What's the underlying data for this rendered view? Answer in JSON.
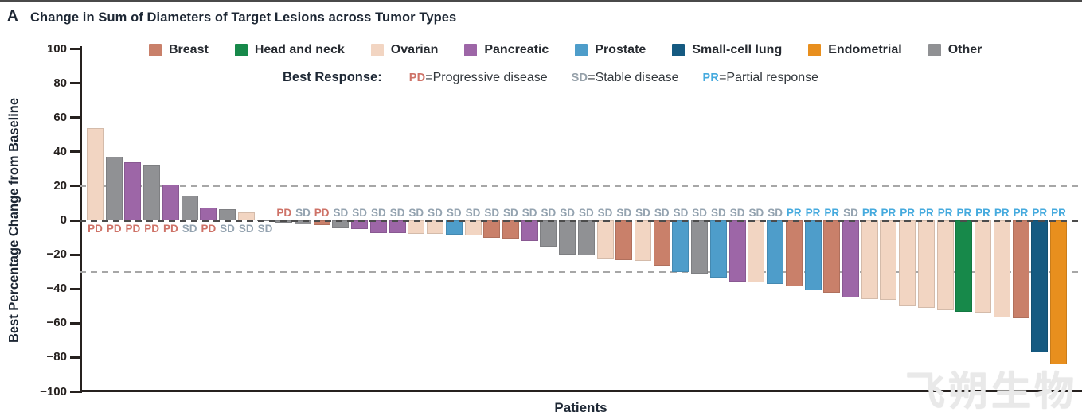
{
  "panel_label": "A",
  "title": "Change in Sum of Diameters of Target Lesions across Tumor Types",
  "ylabel": "Best Percentage Change from Baseline",
  "xlabel": "Patients",
  "watermark": "飞朔生物",
  "colors": {
    "Breast": "#c9806a",
    "Head and neck": "#17894a",
    "Ovarian": "#f2d5c2",
    "Pancreatic": "#9d66a7",
    "Prostate": "#4e9dca",
    "Small-cell lung": "#155a81",
    "Endometrial": "#e88f1e",
    "Other": "#909194",
    "PD": "#ce7267",
    "SD": "#94a3b0",
    "PR": "#45aade"
  },
  "legend": {
    "tumor_types": [
      {
        "label": "Breast",
        "color": "#c9806a"
      },
      {
        "label": "Head and neck",
        "color": "#17894a"
      },
      {
        "label": "Ovarian",
        "color": "#f2d5c2"
      },
      {
        "label": "Pancreatic",
        "color": "#9d66a7"
      },
      {
        "label": "Prostate",
        "color": "#4e9dca"
      },
      {
        "label": "Small-cell lung",
        "color": "#155a81"
      },
      {
        "label": "Endometrial",
        "color": "#e88f1e"
      },
      {
        "label": "Other",
        "color": "#909194"
      }
    ],
    "best_response_label": "Best Response:",
    "responses": [
      {
        "abbr": "PD",
        "label": "Progressive disease",
        "color": "#ce7267"
      },
      {
        "abbr": "SD",
        "label": "Stable disease",
        "color": "#95a0a9"
      },
      {
        "abbr": "PR",
        "label": "Partial response",
        "color": "#45aade"
      }
    ]
  },
  "chart_data": {
    "type": "bar",
    "title": "Change in Sum of Diameters of Target Lesions across Tumor Types",
    "xlabel": "Patients",
    "ylabel": "Best Percentage Change from Baseline",
    "ylim": [
      -100,
      100
    ],
    "yticks": [
      100,
      80,
      60,
      40,
      20,
      0,
      -20,
      -40,
      -60,
      -80,
      -100
    ],
    "reference_lines": [
      20,
      0,
      -30
    ],
    "grid": "dashed horizontal at +20, 0, -30",
    "legend_position": "top",
    "patients": [
      {
        "tumor": "Ovarian",
        "value": 54,
        "response": "PD"
      },
      {
        "tumor": "Other",
        "value": 37,
        "response": "PD"
      },
      {
        "tumor": "Pancreatic",
        "value": 34,
        "response": "PD"
      },
      {
        "tumor": "Other",
        "value": 32,
        "response": "PD"
      },
      {
        "tumor": "Pancreatic",
        "value": 21,
        "response": "PD"
      },
      {
        "tumor": "Other",
        "value": 14.5,
        "response": "SD"
      },
      {
        "tumor": "Pancreatic",
        "value": 7.5,
        "response": "PD"
      },
      {
        "tumor": "Other",
        "value": 6.5,
        "response": "SD"
      },
      {
        "tumor": "Ovarian",
        "value": 4.5,
        "response": "SD"
      },
      {
        "tumor": "Other",
        "value": 0.5,
        "response": "SD"
      },
      {
        "tumor": "Other",
        "value": -1.5,
        "response": "PD"
      },
      {
        "tumor": "Other",
        "value": -2.5,
        "response": "SD"
      },
      {
        "tumor": "Breast",
        "value": -3,
        "response": "PD"
      },
      {
        "tumor": "Other",
        "value": -4.5,
        "response": "SD"
      },
      {
        "tumor": "Pancreatic",
        "value": -5,
        "response": "SD"
      },
      {
        "tumor": "Pancreatic",
        "value": -7.5,
        "response": "SD"
      },
      {
        "tumor": "Pancreatic",
        "value": -7.5,
        "response": "SD"
      },
      {
        "tumor": "Ovarian",
        "value": -8,
        "response": "SD"
      },
      {
        "tumor": "Ovarian",
        "value": -8,
        "response": "SD"
      },
      {
        "tumor": "Prostate",
        "value": -8.5,
        "response": "SD"
      },
      {
        "tumor": "Ovarian",
        "value": -9,
        "response": "SD"
      },
      {
        "tumor": "Breast",
        "value": -10,
        "response": "SD"
      },
      {
        "tumor": "Breast",
        "value": -10.5,
        "response": "SD"
      },
      {
        "tumor": "Pancreatic",
        "value": -12,
        "response": "SD"
      },
      {
        "tumor": "Other",
        "value": -15.5,
        "response": "SD"
      },
      {
        "tumor": "Other",
        "value": -20,
        "response": "SD"
      },
      {
        "tumor": "Other",
        "value": -20.5,
        "response": "SD"
      },
      {
        "tumor": "Ovarian",
        "value": -22.5,
        "response": "SD"
      },
      {
        "tumor": "Breast",
        "value": -23,
        "response": "SD"
      },
      {
        "tumor": "Ovarian",
        "value": -23.5,
        "response": "SD"
      },
      {
        "tumor": "Breast",
        "value": -26.5,
        "response": "SD"
      },
      {
        "tumor": "Prostate",
        "value": -30,
        "response": "SD"
      },
      {
        "tumor": "Other",
        "value": -31,
        "response": "SD"
      },
      {
        "tumor": "Prostate",
        "value": -33.5,
        "response": "SD"
      },
      {
        "tumor": "Pancreatic",
        "value": -35.5,
        "response": "SD"
      },
      {
        "tumor": "Ovarian",
        "value": -36,
        "response": "SD"
      },
      {
        "tumor": "Prostate",
        "value": -37,
        "response": "SD"
      },
      {
        "tumor": "Breast",
        "value": -38.5,
        "response": "PR"
      },
      {
        "tumor": "Prostate",
        "value": -41,
        "response": "PR"
      },
      {
        "tumor": "Breast",
        "value": -42,
        "response": "PR"
      },
      {
        "tumor": "Pancreatic",
        "value": -45,
        "response": "SD"
      },
      {
        "tumor": "Ovarian",
        "value": -46,
        "response": "PR"
      },
      {
        "tumor": "Ovarian",
        "value": -46.5,
        "response": "PR"
      },
      {
        "tumor": "Ovarian",
        "value": -50,
        "response": "PR"
      },
      {
        "tumor": "Ovarian",
        "value": -51,
        "response": "PR"
      },
      {
        "tumor": "Ovarian",
        "value": -52.5,
        "response": "PR"
      },
      {
        "tumor": "Head and neck",
        "value": -53.5,
        "response": "PR"
      },
      {
        "tumor": "Ovarian",
        "value": -54,
        "response": "PR"
      },
      {
        "tumor": "Ovarian",
        "value": -56.5,
        "response": "PR"
      },
      {
        "tumor": "Breast",
        "value": -57,
        "response": "PR"
      },
      {
        "tumor": "Small-cell lung",
        "value": -77,
        "response": "PR"
      },
      {
        "tumor": "Endometrial",
        "value": -84,
        "response": "PR"
      }
    ]
  }
}
